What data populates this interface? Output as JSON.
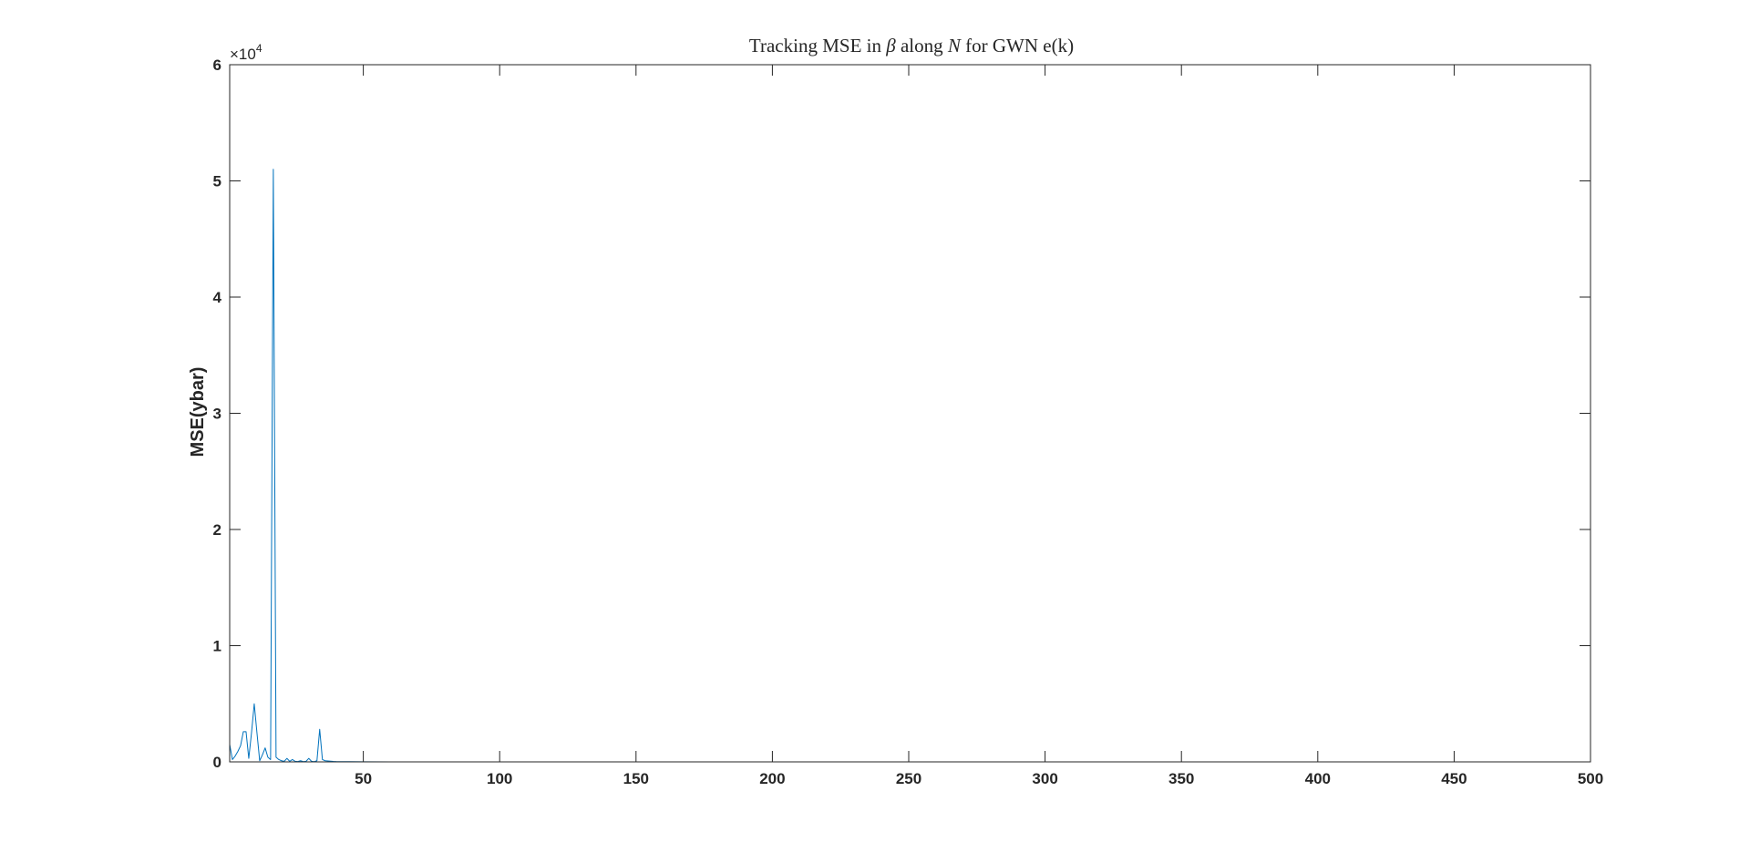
{
  "chart_data": {
    "type": "line",
    "title_parts": {
      "a": "Tracking MSE in ",
      "beta": "β",
      "b": " along ",
      "n": "N",
      "c": " for GWN e(k)"
    },
    "xlabel": "",
    "ylabel": "MSE(ybar)",
    "xlim": [
      1,
      500
    ],
    "ylim": [
      0,
      60000
    ],
    "x_ticks": [
      50,
      100,
      150,
      200,
      250,
      300,
      350,
      400,
      450,
      500
    ],
    "y_ticks": [
      0,
      10000,
      20000,
      30000,
      40000,
      50000,
      60000
    ],
    "y_tick_labels": [
      "0",
      "1",
      "2",
      "3",
      "4",
      "5",
      "6"
    ],
    "y_exponent": {
      "base": "×10",
      "power": "4"
    },
    "grid": false,
    "line_color": "#0072BD",
    "series": [
      {
        "x": [
          1,
          2,
          3,
          4,
          5,
          6,
          7,
          8,
          9,
          10,
          11,
          12,
          13,
          14,
          15,
          16,
          17,
          18,
          19,
          20,
          21,
          22,
          23,
          24,
          25,
          26,
          27,
          28,
          29,
          30,
          31,
          32,
          33,
          34,
          35,
          36,
          37,
          38,
          39,
          40,
          45,
          50,
          60,
          80,
          100,
          150,
          200,
          250,
          300,
          350,
          400,
          450,
          500
        ],
        "y": [
          1500,
          200,
          500,
          900,
          1400,
          2600,
          2600,
          300,
          2500,
          5000,
          2500,
          100,
          600,
          1200,
          400,
          200,
          51000,
          400,
          200,
          100,
          50,
          300,
          50,
          200,
          50,
          30,
          100,
          20,
          50,
          300,
          50,
          20,
          100,
          2800,
          200,
          100,
          80,
          60,
          40,
          30,
          20,
          10,
          5,
          5,
          5,
          5,
          5,
          5,
          5,
          5,
          5,
          5,
          5
        ]
      }
    ]
  }
}
